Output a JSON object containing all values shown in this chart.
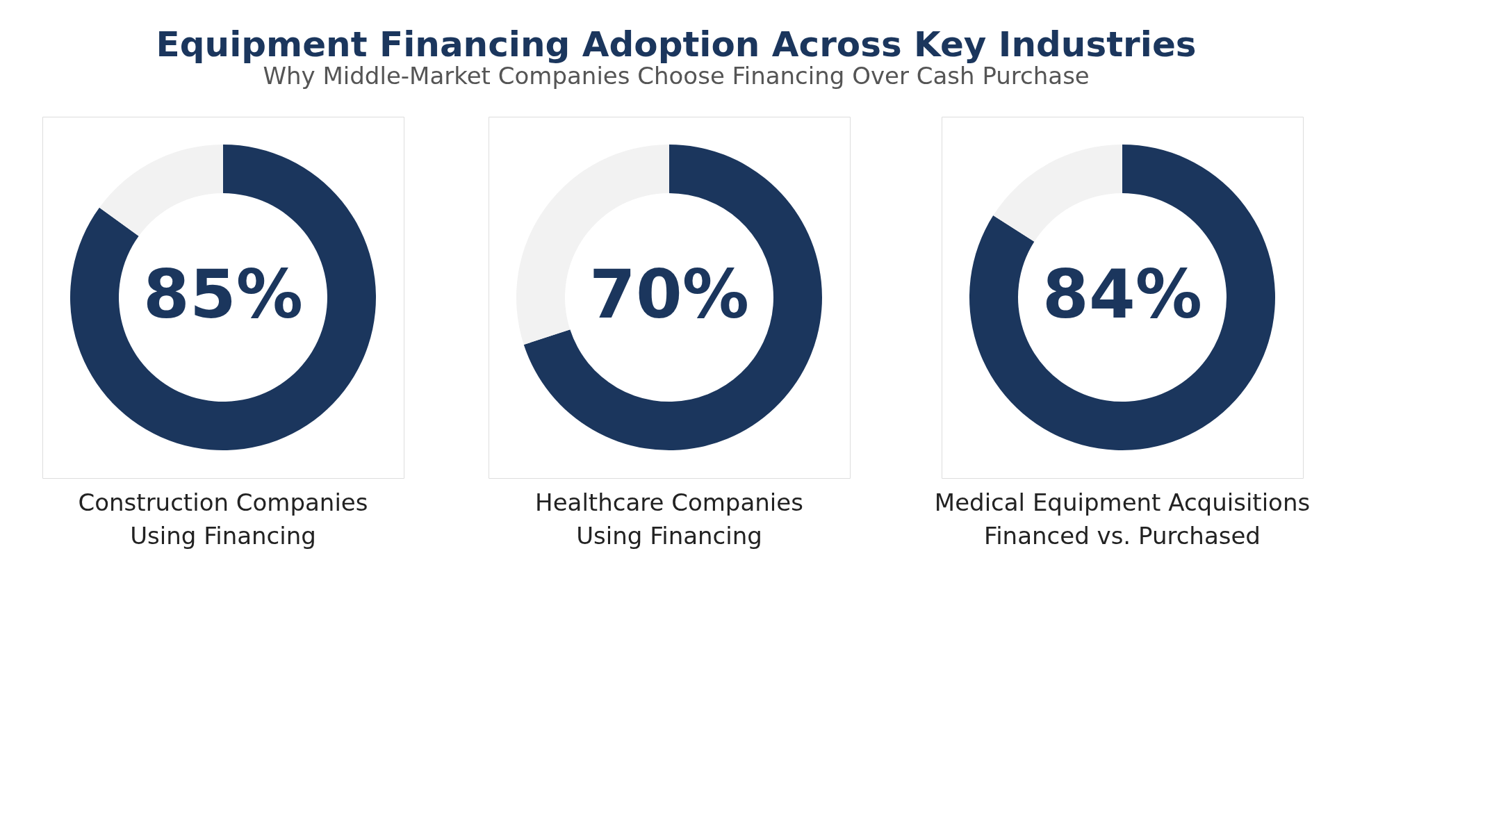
{
  "chart_data": [
    {
      "type": "donut",
      "title": "Equipment Financing Adoption Across Key Industries",
      "subtitle": "Why Middle-Market Companies Choose Financing Over Cash Purchase",
      "xlabel": "Construction Companies Using Financing",
      "categories": [
        null,
        null
      ],
      "values": [
        85,
        15
      ],
      "colors": [
        "#1b365d",
        "#f2f2f2"
      ],
      "value_labels": [
        "85%",
        null
      ]
    },
    {
      "type": "donut",
      "xlabel": "Healthcare Companies Using Financing",
      "categories": [
        null,
        null
      ],
      "values": [
        70,
        30
      ],
      "colors": [
        "#1b365d",
        "#f2f2f2"
      ],
      "value_labels": [
        "70%",
        null
      ]
    },
    {
      "type": "donut",
      "xlabel": "Medical Equipment Acquisitions Financed vs. Purchased",
      "categories": [
        null,
        null
      ],
      "values": [
        84,
        16
      ],
      "colors": [
        "#1b365d",
        "#f2f2f2"
      ],
      "value_labels": [
        "84%",
        null
      ]
    }
  ]
}
